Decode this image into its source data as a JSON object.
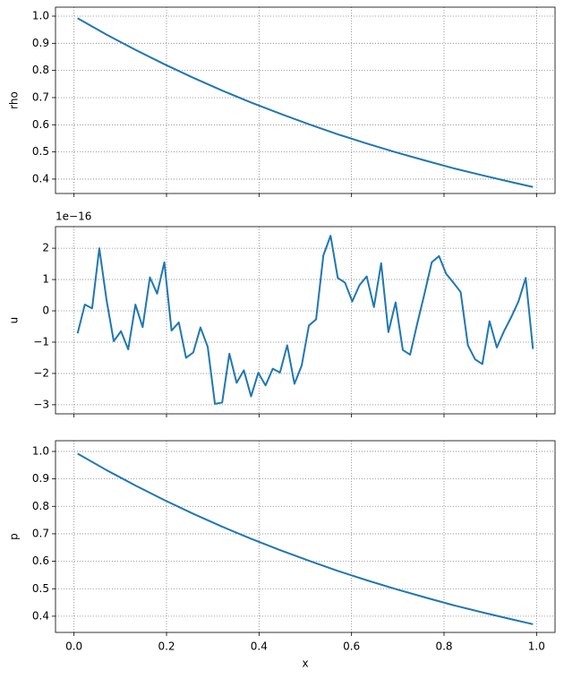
{
  "chart_data": [
    {
      "type": "line",
      "ylabel": "rho",
      "color": "#1f77b4",
      "grid": true,
      "x": [
        0.0078,
        0.0703,
        0.1328,
        0.1953,
        0.2578,
        0.3203,
        0.3828,
        0.4453,
        0.5078,
        0.5703,
        0.6328,
        0.6953,
        0.7578,
        0.8203,
        0.8828,
        0.9453,
        0.9922
      ],
      "values": [
        0.992,
        0.932,
        0.876,
        0.823,
        0.773,
        0.726,
        0.682,
        0.641,
        0.602,
        0.565,
        0.531,
        0.499,
        0.469,
        0.44,
        0.414,
        0.389,
        0.371
      ],
      "xlim": [
        -0.04,
        1.04
      ],
      "xticks": [
        0,
        0.2,
        0.4,
        0.6,
        0.8,
        1
      ],
      "ylim": [
        0.347,
        1.033
      ],
      "yticks": [
        0.4,
        0.5,
        0.6,
        0.7,
        0.8,
        0.9,
        {
          "value": 1,
          "label": "1.0"
        }
      ]
    },
    {
      "type": "line",
      "ylabel": "u",
      "offset_label": "1e−16",
      "color": "#1f77b4",
      "grid": true,
      "x": [
        0.0078,
        0.0234,
        0.0391,
        0.0547,
        0.0703,
        0.0859,
        0.1016,
        0.1172,
        0.1328,
        0.1484,
        0.1641,
        0.1797,
        0.1953,
        0.2109,
        0.2266,
        0.2422,
        0.2578,
        0.2734,
        0.2891,
        0.3047,
        0.3203,
        0.3359,
        0.3516,
        0.3672,
        0.3828,
        0.3984,
        0.4141,
        0.4297,
        0.4453,
        0.4609,
        0.4766,
        0.4922,
        0.5078,
        0.5234,
        0.5391,
        0.5547,
        0.5703,
        0.5859,
        0.6016,
        0.6172,
        0.6328,
        0.6484,
        0.6641,
        0.6797,
        0.6953,
        0.7109,
        0.7266,
        0.7422,
        0.7578,
        0.7734,
        0.7891,
        0.8047,
        0.8203,
        0.8359,
        0.8516,
        0.8672,
        0.8828,
        0.8984,
        0.9141,
        0.9297,
        0.9453,
        0.9609,
        0.9766,
        0.9922
      ],
      "values": [
        -0.72,
        0.2,
        0.08,
        2.0,
        0.35,
        -0.97,
        -0.65,
        -1.23,
        0.2,
        -0.52,
        1.07,
        0.55,
        1.55,
        -0.63,
        -0.37,
        -1.5,
        -1.33,
        -0.53,
        -1.15,
        -2.97,
        -2.93,
        -1.37,
        -2.3,
        -1.9,
        -2.73,
        -1.98,
        -2.38,
        -1.85,
        -1.97,
        -1.1,
        -2.33,
        -1.75,
        -0.47,
        -0.27,
        1.77,
        2.4,
        1.05,
        0.9,
        0.3,
        0.82,
        1.1,
        0.12,
        1.52,
        -0.68,
        0.27,
        -1.25,
        -1.4,
        -0.4,
        0.55,
        1.55,
        1.75,
        1.18,
        0.9,
        0.6,
        -1.1,
        -1.55,
        -1.7,
        -0.33,
        -1.17,
        -0.65,
        -0.2,
        0.3,
        1.05,
        -1.22
      ],
      "xlim": [
        -0.04,
        1.04
      ],
      "xticks": [
        0,
        0.2,
        0.4,
        0.6,
        0.8,
        1
      ],
      "ylim": [
        -3.29,
        2.69
      ],
      "yticks": [
        {
          "value": -3,
          "label": "−3"
        },
        {
          "value": -2,
          "label": "−2"
        },
        {
          "value": -1,
          "label": "−1"
        },
        0,
        1,
        2
      ]
    },
    {
      "type": "line",
      "ylabel": "p",
      "xlabel": "x",
      "color": "#1f77b4",
      "grid": true,
      "x": [
        0.0078,
        0.0703,
        0.1328,
        0.1953,
        0.2578,
        0.3203,
        0.3828,
        0.4453,
        0.5078,
        0.5703,
        0.6328,
        0.6953,
        0.7578,
        0.8203,
        0.8828,
        0.9453,
        0.9922
      ],
      "values": [
        0.992,
        0.932,
        0.876,
        0.823,
        0.773,
        0.726,
        0.682,
        0.641,
        0.602,
        0.565,
        0.531,
        0.499,
        0.469,
        0.44,
        0.414,
        0.389,
        0.371
      ],
      "xlim": [
        -0.04,
        1.04
      ],
      "xticks": [
        {
          "value": 0,
          "label": "0.0"
        },
        {
          "value": 0.2,
          "label": "0.2"
        },
        {
          "value": 0.4,
          "label": "0.4"
        },
        {
          "value": 0.6,
          "label": "0.6"
        },
        {
          "value": 0.8,
          "label": "0.8"
        },
        {
          "value": 1,
          "label": "1.0"
        }
      ],
      "ylim": [
        0.341,
        1.039
      ],
      "yticks": [
        0.4,
        0.5,
        0.6,
        0.7,
        0.8,
        0.9,
        {
          "value": 1,
          "label": "1.0"
        }
      ]
    }
  ]
}
